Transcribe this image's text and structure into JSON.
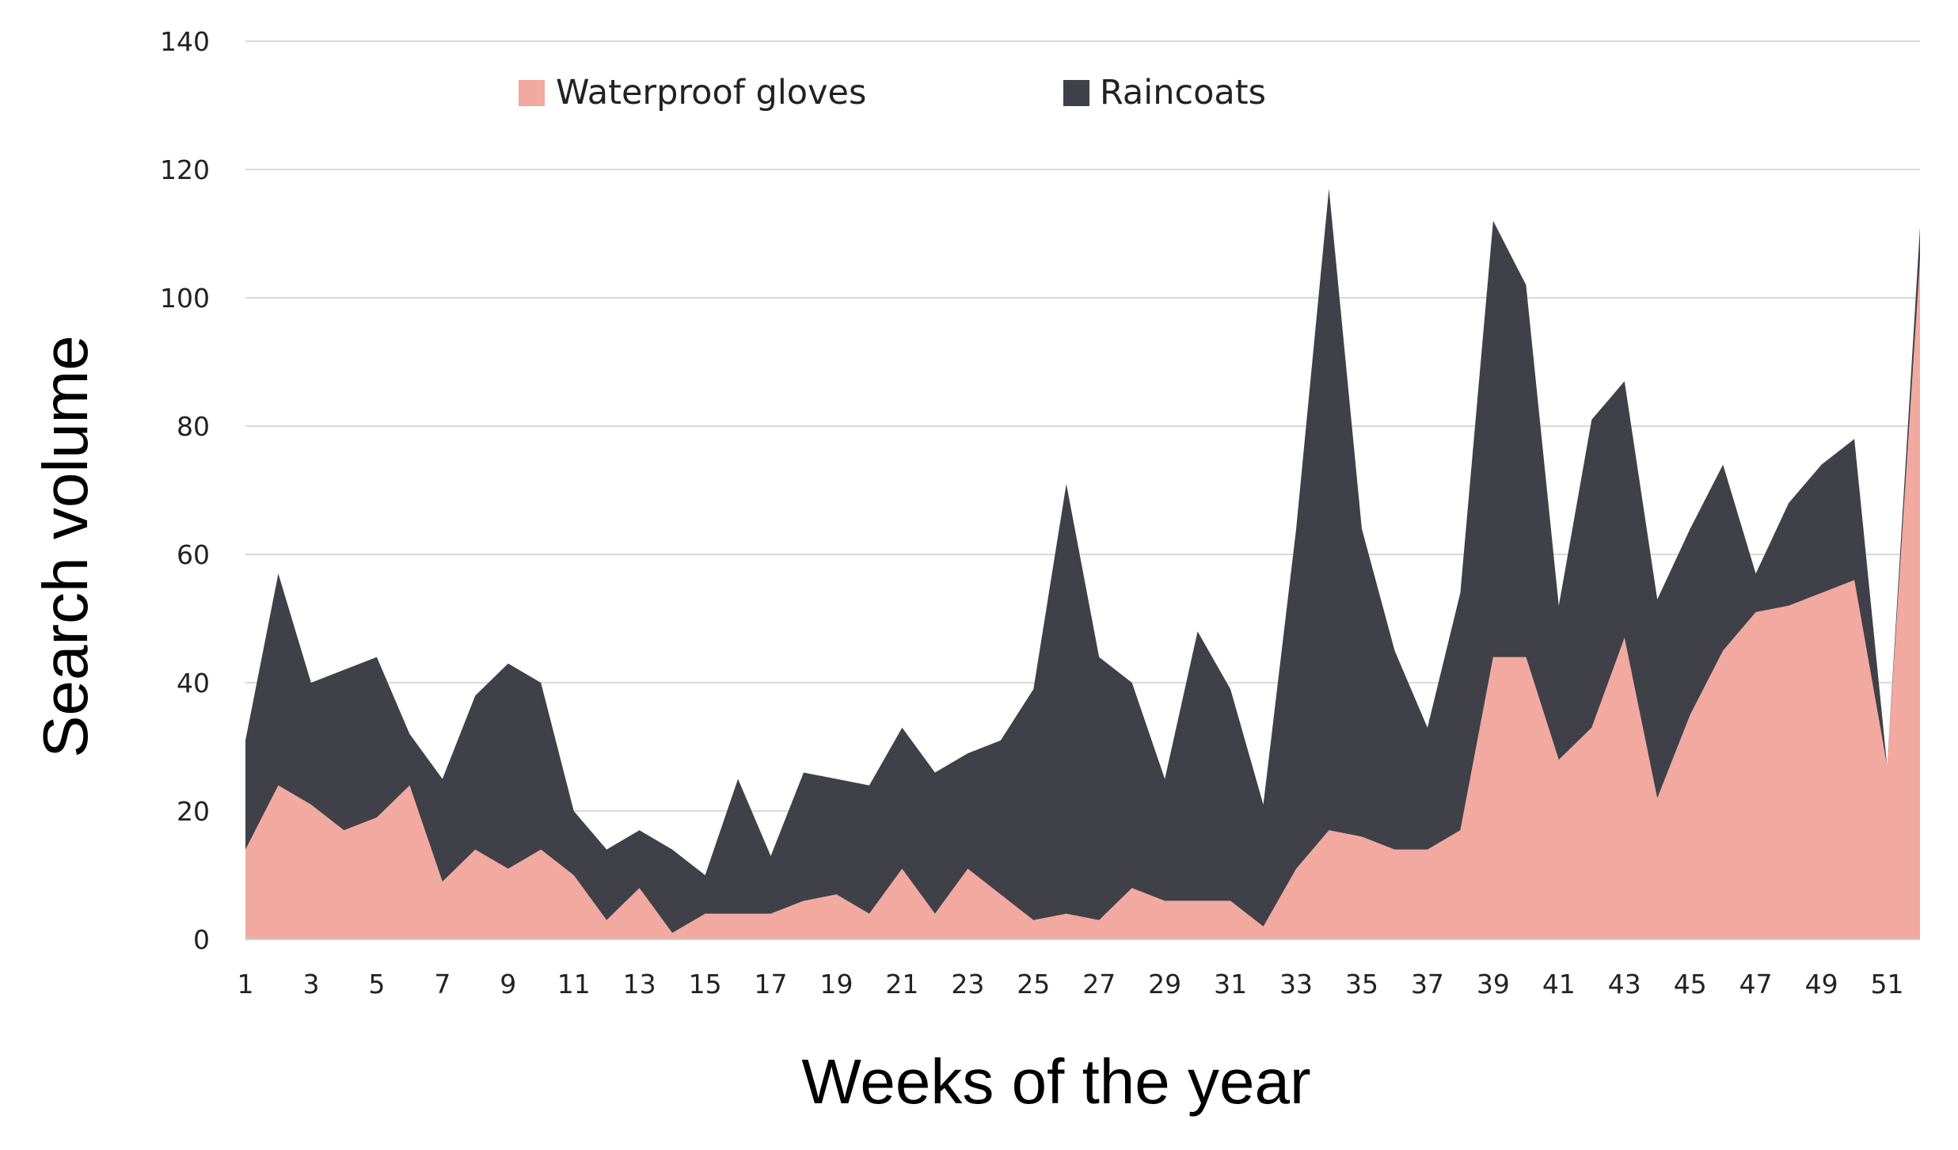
{
  "chart_data": {
    "type": "area",
    "stacked": true,
    "xlabel": "Weeks of the year",
    "ylabel": "Search volume",
    "ylim": [
      0,
      140
    ],
    "yticks": [
      0,
      20,
      40,
      60,
      80,
      100,
      120,
      140
    ],
    "x": [
      1,
      2,
      3,
      4,
      5,
      6,
      7,
      8,
      9,
      10,
      11,
      12,
      13,
      14,
      15,
      16,
      17,
      18,
      19,
      20,
      21,
      22,
      23,
      24,
      25,
      26,
      27,
      28,
      29,
      30,
      31,
      32,
      33,
      34,
      35,
      36,
      37,
      38,
      39,
      40,
      41,
      42,
      43,
      44,
      45,
      46,
      47,
      48,
      49,
      50,
      51,
      52
    ],
    "xtick_labels": [
      "1",
      "3",
      "5",
      "7",
      "9",
      "11",
      "13",
      "15",
      "17",
      "19",
      "21",
      "23",
      "25",
      "27",
      "29",
      "31",
      "33",
      "35",
      "37",
      "39",
      "41",
      "43",
      "45",
      "47",
      "49",
      "51"
    ],
    "grid": "horizontal",
    "legend_position": "top",
    "series": [
      {
        "name": "Waterproof gloves",
        "color": "#f2a9a0",
        "values": [
          14,
          24,
          21,
          17,
          19,
          24,
          9,
          14,
          11,
          14,
          10,
          3,
          8,
          1,
          4,
          4,
          4,
          6,
          7,
          4,
          11,
          4,
          11,
          7,
          3,
          4,
          3,
          8,
          6,
          6,
          6,
          2,
          11,
          17,
          16,
          14,
          14,
          17,
          44,
          44,
          28,
          33,
          47,
          22,
          35,
          45,
          51,
          52,
          54,
          56,
          27,
          106
        ]
      },
      {
        "name": "Raincoats",
        "color": "#404049",
        "values": [
          17,
          33,
          19,
          25,
          25,
          8,
          16,
          24,
          32,
          26,
          10,
          11,
          9,
          13,
          6,
          21,
          9,
          20,
          18,
          20,
          22,
          22,
          18,
          24,
          36,
          67,
          41,
          32,
          19,
          42,
          33,
          19,
          53,
          100,
          48,
          31,
          19,
          37,
          68,
          58,
          24,
          48,
          40,
          31,
          29,
          29,
          6,
          16,
          20,
          22,
          0,
          5
        ]
      }
    ]
  }
}
